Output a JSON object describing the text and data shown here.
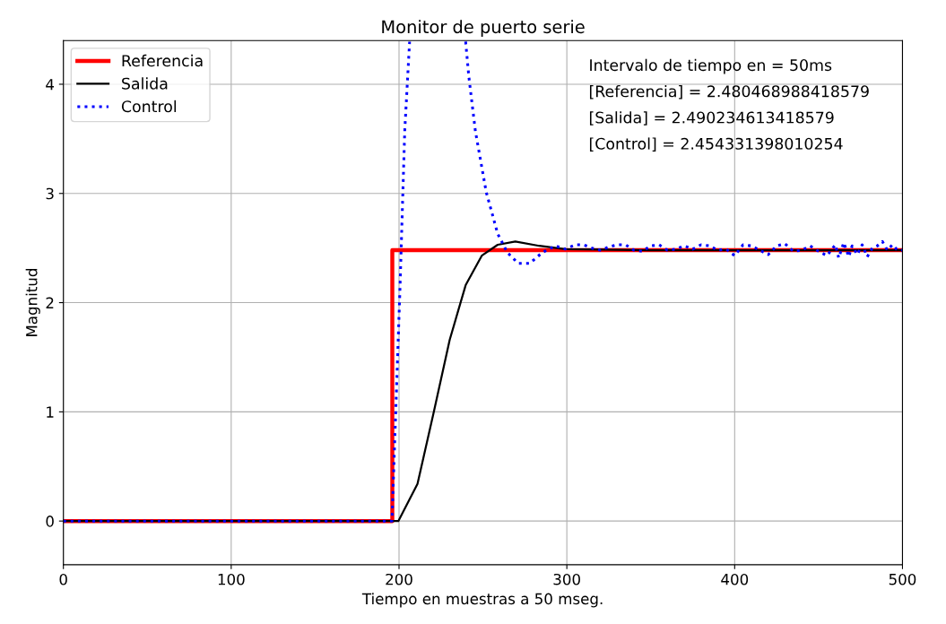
{
  "chart_data": {
    "type": "line",
    "title": "Monitor de puerto serie",
    "xlabel": "Tiempo en muestras a 50 mseg.",
    "ylabel": "Magnitud",
    "xlim": [
      0,
      500
    ],
    "ylim": [
      -0.4,
      4.4
    ],
    "xticks": [
      0,
      100,
      200,
      300,
      400,
      500
    ],
    "yticks": [
      0,
      1,
      2,
      3,
      4
    ],
    "grid": true,
    "legend": "top left",
    "annotations": [
      "Intervalo de tiempo en = 50ms",
      "[Referencia] = 2.480468988418579",
      "[Salida] = 2.490234613418579",
      "[Control] = 2.454331398010254"
    ],
    "series": [
      {
        "name": "Referencia",
        "color": "#ff0000",
        "line_style": "solid",
        "x": [
          0,
          196,
          196,
          500
        ],
        "values": [
          0,
          0,
          2.48,
          2.48
        ]
      },
      {
        "name": "Salida",
        "color": "#000000",
        "line_style": "solid",
        "x": [
          0,
          199.6,
          211,
          220.6,
          230.2,
          239.7,
          249.3,
          258.8,
          269.3,
          283.6,
          299,
          350,
          400,
          450,
          500
        ],
        "values": [
          0,
          0,
          0.34,
          0.99,
          1.66,
          2.16,
          2.43,
          2.53,
          2.56,
          2.52,
          2.49,
          2.48,
          2.48,
          2.48,
          2.48
        ]
      },
      {
        "name": "Control",
        "color": "#0000ff",
        "line_style": "dotted",
        "x": [
          0,
          195.8,
          200.5,
          203.4,
          206.3,
          223,
          239.7,
          241.6,
          245.5,
          252,
          258.8,
          264.5,
          271,
          277.9,
          285.5,
          293.2,
          299,
          305,
          310,
          315,
          320,
          325,
          330,
          335,
          340,
          345,
          350,
          355,
          360,
          365,
          370,
          375,
          380,
          385,
          390,
          395,
          400,
          405,
          410,
          415,
          420,
          425,
          430,
          435,
          440,
          445,
          450,
          455,
          460,
          462,
          465,
          468,
          470,
          473,
          476,
          479,
          482,
          485,
          488,
          491,
          494,
          497,
          500
        ],
        "values": [
          0,
          0,
          2.1,
          3.57,
          4.39,
          null,
          4.39,
          4.07,
          3.57,
          3.01,
          2.63,
          2.46,
          2.36,
          2.36,
          2.46,
          2.52,
          2.49,
          2.53,
          2.53,
          2.5,
          2.48,
          2.51,
          2.53,
          2.53,
          2.48,
          2.47,
          2.52,
          2.53,
          2.48,
          2.49,
          2.52,
          2.49,
          2.53,
          2.52,
          2.48,
          2.49,
          2.43,
          2.53,
          2.52,
          2.48,
          2.44,
          2.52,
          2.54,
          2.47,
          2.48,
          2.52,
          2.47,
          2.43,
          2.53,
          2.41,
          2.55,
          2.42,
          2.52,
          2.44,
          2.53,
          2.42,
          2.5,
          2.52,
          2.56,
          2.48,
          2.53,
          2.48,
          2.48
        ]
      }
    ]
  }
}
